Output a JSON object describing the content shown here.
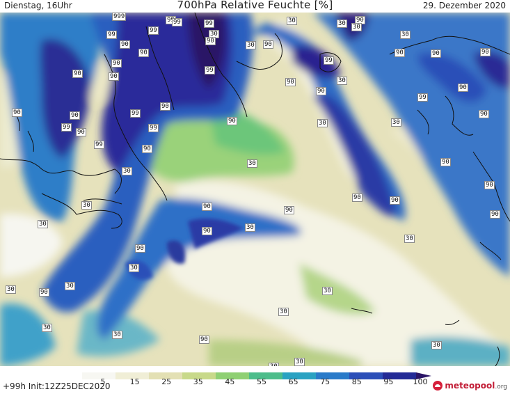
{
  "header": {
    "left": "Dienstag, 16Uhr",
    "title": "700hPa Relative Feuchte [%]",
    "date": "29. Dezember 2020"
  },
  "footer": {
    "init": "+99h  Init:12Z25DEC2020",
    "logo": "meteopool",
    "logo_suffix": ".org",
    "logo_icon": "meteopool-logo-icon"
  },
  "colorbar": {
    "ticks": [
      "5",
      "15",
      "25",
      "35",
      "45",
      "55",
      "65",
      "75",
      "85",
      "95",
      "100"
    ],
    "colors": [
      "#f7f7f2",
      "#f0eed6",
      "#e3e0b4",
      "#c8d98a",
      "#8fd073",
      "#4dbd8b",
      "#2aa2c2",
      "#2a7bc9",
      "#2c4fb8",
      "#232a96",
      "#2a1466"
    ]
  },
  "contour_labels": [
    {
      "t": "999"
    },
    {
      "t": "99"
    },
    {
      "t": "99"
    },
    {
      "t": "90"
    },
    {
      "t": "90"
    },
    {
      "t": "99"
    },
    {
      "t": "90"
    },
    {
      "t": "99"
    },
    {
      "t": "90"
    },
    {
      "t": "90"
    },
    {
      "t": "99"
    },
    {
      "t": "99"
    },
    {
      "t": "99"
    },
    {
      "t": "30"
    },
    {
      "t": "90"
    },
    {
      "t": "99"
    },
    {
      "t": "90"
    },
    {
      "t": "90"
    },
    {
      "t": "90"
    },
    {
      "t": "90"
    },
    {
      "t": "90"
    },
    {
      "t": "90"
    },
    {
      "t": "99"
    },
    {
      "t": "90"
    },
    {
      "t": "90"
    },
    {
      "t": "99"
    },
    {
      "t": "30"
    },
    {
      "t": "90"
    },
    {
      "t": "90"
    },
    {
      "t": "90"
    },
    {
      "t": "99"
    },
    {
      "t": "30"
    },
    {
      "t": "90"
    },
    {
      "t": "90"
    },
    {
      "t": "90"
    },
    {
      "t": "99"
    },
    {
      "t": "90"
    },
    {
      "t": "30"
    },
    {
      "t": "90"
    },
    {
      "t": "90"
    },
    {
      "t": "30"
    },
    {
      "t": "90"
    },
    {
      "t": "90"
    },
    {
      "t": "90"
    },
    {
      "t": "90"
    },
    {
      "t": "30"
    },
    {
      "t": "30"
    },
    {
      "t": "30"
    },
    {
      "t": "90"
    },
    {
      "t": "90"
    },
    {
      "t": "30"
    },
    {
      "t": "90"
    },
    {
      "t": "90"
    },
    {
      "t": "30"
    },
    {
      "t": "30"
    },
    {
      "t": "30"
    },
    {
      "t": "30"
    },
    {
      "t": "30"
    },
    {
      "t": "90"
    },
    {
      "t": "30"
    },
    {
      "t": "30"
    },
    {
      "t": "30"
    },
    {
      "t": "30"
    },
    {
      "t": "30"
    },
    {
      "t": "30"
    },
    {
      "t": "30"
    },
    {
      "t": "30"
    },
    {
      "t": "30"
    },
    {
      "t": "30"
    },
    {
      "t": "30"
    }
  ]
}
